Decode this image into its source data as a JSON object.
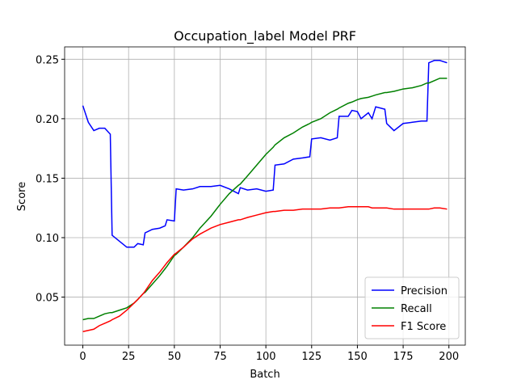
{
  "chart_data": {
    "type": "line",
    "title": "Occupation_label Model PRF",
    "xlabel": "Batch",
    "ylabel": "Score",
    "x": [
      0,
      3,
      6,
      9,
      12,
      15,
      16,
      20,
      24,
      28,
      30,
      33,
      34,
      38,
      42,
      45,
      46,
      50,
      51,
      55,
      60,
      64,
      70,
      75,
      80,
      85,
      86,
      90,
      95,
      100,
      104,
      105,
      110,
      115,
      120,
      124,
      125,
      130,
      135,
      139,
      140,
      145,
      147,
      150,
      152,
      156,
      158,
      160,
      165,
      166,
      170,
      175,
      180,
      185,
      188,
      189,
      192,
      195,
      199
    ],
    "series": [
      {
        "name": "Precision",
        "color": "#0000ff",
        "values": [
          0.211,
          0.197,
          0.19,
          0.192,
          0.192,
          0.187,
          0.102,
          0.097,
          0.092,
          0.092,
          0.095,
          0.094,
          0.104,
          0.107,
          0.108,
          0.11,
          0.115,
          0.114,
          0.141,
          0.14,
          0.141,
          0.143,
          0.143,
          0.144,
          0.141,
          0.137,
          0.142,
          0.14,
          0.141,
          0.139,
          0.14,
          0.161,
          0.162,
          0.166,
          0.167,
          0.168,
          0.183,
          0.184,
          0.182,
          0.184,
          0.202,
          0.202,
          0.207,
          0.206,
          0.2,
          0.205,
          0.2,
          0.21,
          0.208,
          0.196,
          0.19,
          0.196,
          0.197,
          0.198,
          0.198,
          0.247,
          0.249,
          0.249,
          0.247
        ]
      },
      {
        "name": "Recall",
        "color": "#008000",
        "values": [
          0.031,
          0.032,
          0.032,
          0.034,
          0.036,
          0.037,
          0.037,
          0.039,
          0.041,
          0.045,
          0.048,
          0.053,
          0.054,
          0.061,
          0.068,
          0.074,
          0.076,
          0.085,
          0.086,
          0.092,
          0.1,
          0.108,
          0.118,
          0.128,
          0.137,
          0.144,
          0.145,
          0.152,
          0.161,
          0.17,
          0.176,
          0.178,
          0.184,
          0.188,
          0.193,
          0.196,
          0.197,
          0.2,
          0.205,
          0.208,
          0.209,
          0.213,
          0.214,
          0.216,
          0.217,
          0.218,
          0.219,
          0.22,
          0.222,
          0.222,
          0.223,
          0.225,
          0.226,
          0.228,
          0.23,
          0.23,
          0.232,
          0.234,
          0.234
        ]
      },
      {
        "name": "F1 Score",
        "color": "#ff0000",
        "values": [
          0.021,
          0.022,
          0.023,
          0.026,
          0.028,
          0.03,
          0.031,
          0.034,
          0.039,
          0.045,
          0.048,
          0.053,
          0.055,
          0.064,
          0.071,
          0.077,
          0.079,
          0.086,
          0.087,
          0.092,
          0.099,
          0.103,
          0.108,
          0.111,
          0.113,
          0.115,
          0.115,
          0.117,
          0.119,
          0.121,
          0.122,
          0.122,
          0.123,
          0.123,
          0.124,
          0.124,
          0.124,
          0.124,
          0.125,
          0.125,
          0.125,
          0.126,
          0.126,
          0.126,
          0.126,
          0.126,
          0.125,
          0.125,
          0.125,
          0.125,
          0.124,
          0.124,
          0.124,
          0.124,
          0.124,
          0.124,
          0.125,
          0.125,
          0.124
        ]
      }
    ],
    "xlim": [
      -9.95,
      208.95
    ],
    "ylim": [
      0.0096,
      0.2604
    ],
    "xticks": [
      0,
      25,
      50,
      75,
      100,
      125,
      150,
      175,
      200
    ],
    "yticks": [
      0.05,
      {
        "value": 0.1,
        "label": "0.10"
      },
      0.15,
      {
        "value": 0.2,
        "label": "0.20"
      },
      0.25
    ],
    "grid": true,
    "legend": "lower right"
  }
}
